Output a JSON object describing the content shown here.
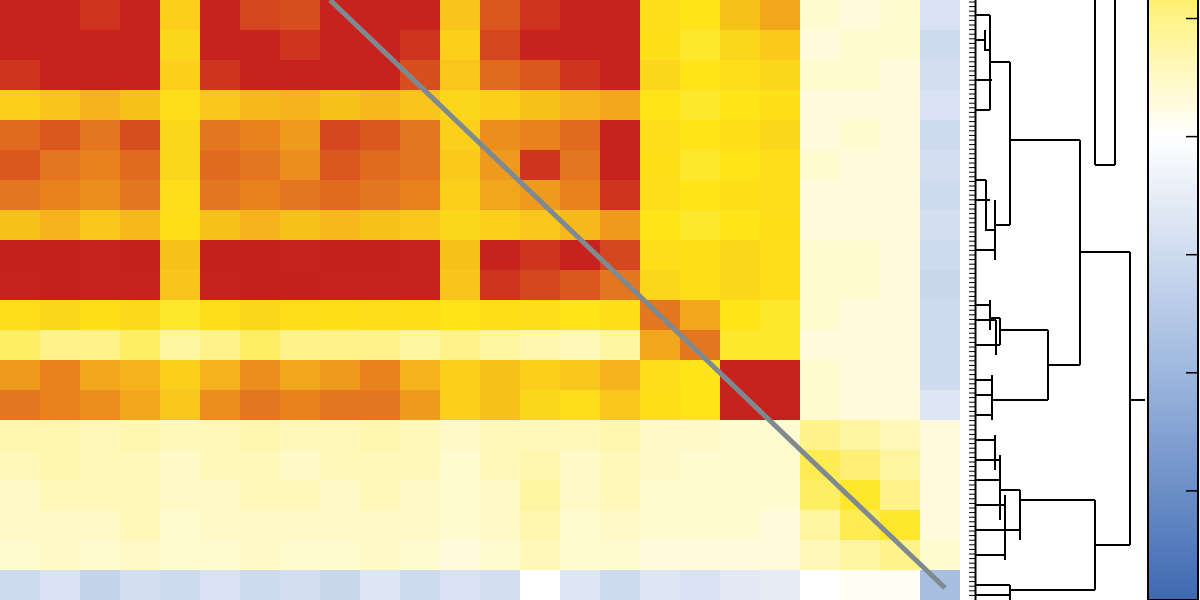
{
  "chart_data": {
    "type": "heatmap",
    "values": [
      [
        0.92,
        0.9,
        0.88,
        0.92,
        0.62,
        0.9,
        0.86,
        0.85,
        0.9,
        0.92,
        0.9,
        0.65,
        0.84,
        0.88,
        0.9,
        0.92,
        0.58,
        0.56,
        0.66,
        0.72,
        0.44,
        0.43,
        0.44,
        0.32
      ],
      [
        0.9,
        0.92,
        0.9,
        0.9,
        0.6,
        0.92,
        0.9,
        0.88,
        0.92,
        0.9,
        0.88,
        0.62,
        0.86,
        0.9,
        0.92,
        0.9,
        0.57,
        0.55,
        0.6,
        0.63,
        0.43,
        0.44,
        0.44,
        0.3
      ],
      [
        0.88,
        0.9,
        0.92,
        0.9,
        0.62,
        0.88,
        0.9,
        0.9,
        0.92,
        0.92,
        0.85,
        0.64,
        0.82,
        0.84,
        0.88,
        0.9,
        0.6,
        0.56,
        0.58,
        0.6,
        0.44,
        0.44,
        0.43,
        0.31
      ],
      [
        0.62,
        0.65,
        0.7,
        0.66,
        0.58,
        0.64,
        0.68,
        0.7,
        0.66,
        0.68,
        0.65,
        0.6,
        0.62,
        0.66,
        0.7,
        0.72,
        0.56,
        0.55,
        0.56,
        0.57,
        0.43,
        0.43,
        0.43,
        0.32
      ],
      [
        0.82,
        0.84,
        0.8,
        0.85,
        0.6,
        0.8,
        0.78,
        0.74,
        0.86,
        0.84,
        0.8,
        0.62,
        0.76,
        0.78,
        0.82,
        0.9,
        0.58,
        0.56,
        0.57,
        0.6,
        0.43,
        0.44,
        0.43,
        0.3
      ],
      [
        0.84,
        0.8,
        0.78,
        0.82,
        0.6,
        0.82,
        0.8,
        0.76,
        0.84,
        0.82,
        0.8,
        0.63,
        0.74,
        0.88,
        0.8,
        0.9,
        0.57,
        0.55,
        0.56,
        0.58,
        0.44,
        0.43,
        0.43,
        0.31
      ],
      [
        0.8,
        0.78,
        0.76,
        0.8,
        0.58,
        0.8,
        0.78,
        0.8,
        0.82,
        0.8,
        0.78,
        0.62,
        0.72,
        0.74,
        0.78,
        0.88,
        0.58,
        0.56,
        0.57,
        0.58,
        0.43,
        0.43,
        0.43,
        0.3
      ],
      [
        0.66,
        0.7,
        0.64,
        0.68,
        0.57,
        0.66,
        0.7,
        0.66,
        0.68,
        0.66,
        0.64,
        0.6,
        0.62,
        0.64,
        0.68,
        0.74,
        0.56,
        0.55,
        0.56,
        0.57,
        0.43,
        0.43,
        0.43,
        0.31
      ],
      [
        0.93,
        0.93,
        0.92,
        0.93,
        0.66,
        0.93,
        0.93,
        0.92,
        0.93,
        0.93,
        0.92,
        0.66,
        0.9,
        0.88,
        0.9,
        0.86,
        0.58,
        0.57,
        0.6,
        0.58,
        0.44,
        0.44,
        0.43,
        0.3
      ],
      [
        0.92,
        0.93,
        0.92,
        0.92,
        0.65,
        0.92,
        0.93,
        0.93,
        0.92,
        0.92,
        0.9,
        0.65,
        0.88,
        0.86,
        0.84,
        0.8,
        0.6,
        0.57,
        0.6,
        0.58,
        0.44,
        0.44,
        0.43,
        0.29
      ],
      [
        0.58,
        0.6,
        0.57,
        0.59,
        0.55,
        0.58,
        0.6,
        0.58,
        0.57,
        0.58,
        0.57,
        0.56,
        0.57,
        0.58,
        0.56,
        0.57,
        0.8,
        0.72,
        0.56,
        0.55,
        0.44,
        0.43,
        0.43,
        0.3
      ],
      [
        0.52,
        0.5,
        0.5,
        0.52,
        0.48,
        0.5,
        0.52,
        0.5,
        0.5,
        0.5,
        0.48,
        0.5,
        0.48,
        0.47,
        0.46,
        0.48,
        0.72,
        0.8,
        0.55,
        0.55,
        0.43,
        0.43,
        0.43,
        0.3
      ],
      [
        0.74,
        0.78,
        0.72,
        0.7,
        0.62,
        0.7,
        0.76,
        0.72,
        0.74,
        0.78,
        0.7,
        0.62,
        0.66,
        0.62,
        0.64,
        0.7,
        0.58,
        0.56,
        0.9,
        0.9,
        0.44,
        0.43,
        0.43,
        0.3
      ],
      [
        0.8,
        0.78,
        0.76,
        0.72,
        0.64,
        0.76,
        0.8,
        0.78,
        0.8,
        0.8,
        0.74,
        0.62,
        0.66,
        0.6,
        0.58,
        0.64,
        0.57,
        0.56,
        0.9,
        0.91,
        0.44,
        0.43,
        0.43,
        0.33
      ],
      [
        0.47,
        0.47,
        0.46,
        0.47,
        0.46,
        0.46,
        0.47,
        0.46,
        0.46,
        0.47,
        0.46,
        0.45,
        0.46,
        0.46,
        0.46,
        0.47,
        0.45,
        0.45,
        0.44,
        0.44,
        0.5,
        0.48,
        0.46,
        0.43
      ],
      [
        0.46,
        0.47,
        0.46,
        0.46,
        0.45,
        0.46,
        0.46,
        0.45,
        0.46,
        0.46,
        0.46,
        0.44,
        0.46,
        0.47,
        0.45,
        0.46,
        0.45,
        0.44,
        0.44,
        0.44,
        0.53,
        0.51,
        0.48,
        0.43
      ],
      [
        0.45,
        0.46,
        0.46,
        0.46,
        0.45,
        0.45,
        0.46,
        0.46,
        0.45,
        0.46,
        0.45,
        0.44,
        0.45,
        0.48,
        0.45,
        0.46,
        0.44,
        0.44,
        0.44,
        0.44,
        0.52,
        0.55,
        0.5,
        0.43
      ],
      [
        0.45,
        0.45,
        0.45,
        0.46,
        0.44,
        0.45,
        0.45,
        0.45,
        0.45,
        0.45,
        0.45,
        0.44,
        0.45,
        0.47,
        0.44,
        0.45,
        0.44,
        0.44,
        0.44,
        0.43,
        0.48,
        0.53,
        0.55,
        0.43
      ],
      [
        0.44,
        0.45,
        0.44,
        0.45,
        0.44,
        0.44,
        0.45,
        0.44,
        0.44,
        0.45,
        0.44,
        0.43,
        0.44,
        0.46,
        0.44,
        0.44,
        0.43,
        0.43,
        0.43,
        0.43,
        0.46,
        0.48,
        0.5,
        0.44
      ],
      [
        0.3,
        0.32,
        0.28,
        0.31,
        0.3,
        0.32,
        0.3,
        0.31,
        0.29,
        0.33,
        0.3,
        0.32,
        0.31,
        0.4,
        0.33,
        0.3,
        0.33,
        0.32,
        0.34,
        0.35,
        0.4,
        0.41,
        0.41,
        0.22
      ]
    ],
    "colorbar": {
      "lim": [
        0,
        1
      ],
      "ticks": [
        0.1,
        0.2,
        0.3,
        0.4,
        0.5
      ]
    }
  }
}
